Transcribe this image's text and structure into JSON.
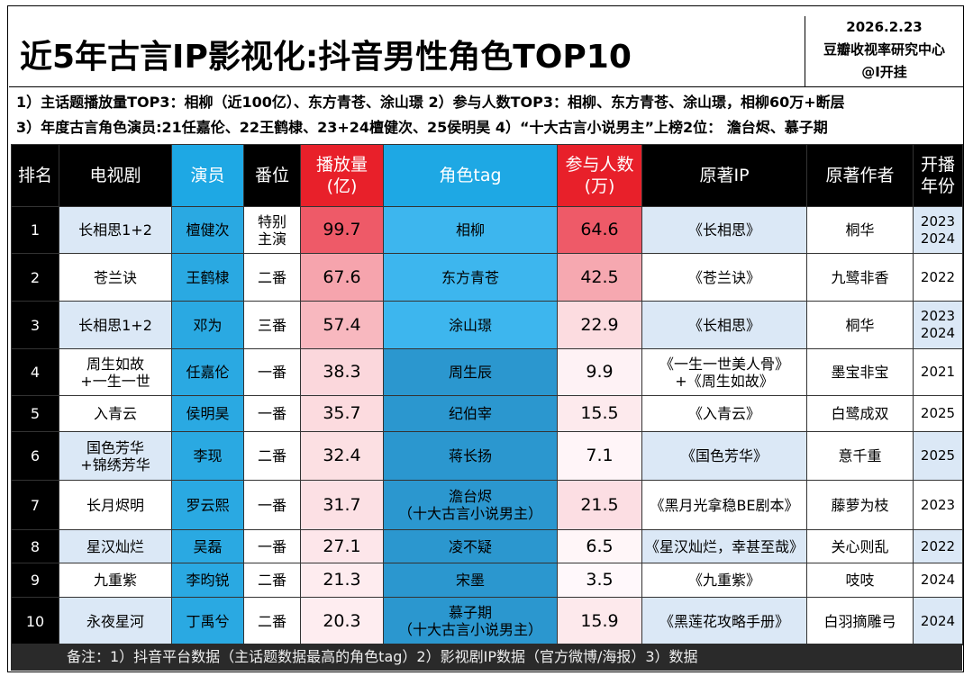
{
  "header": {
    "title": "近5年古言IP影视化:抖音男性角色TOP10",
    "date": "2026.2.23",
    "source": "豆瓣收视率研究中心",
    "author": "@I开挂"
  },
  "notes": [
    "1）主话题播放量TOP3：相柳（近100亿）、东方青苍、涂山璟 2）参与人数TOP3：相柳、东方青苍、涂山璟，相柳60万+断层",
    "3）年度古言角色演员:21任嘉伦、22王鹤棣、23+24檀健次、25侯明昊 4）“十大古言小说男主”上榜2位： 澹台烬、慕子期"
  ],
  "table": {
    "columns": [
      "排名",
      "电视剧",
      "演员",
      "番位",
      "播放量\n(亿)",
      "角色tag",
      "参与人数\n(万)",
      "原著IP",
      "原著作者",
      "开播\n年份"
    ],
    "rows": [
      [
        1,
        "长相思1+2",
        "檀健次",
        "特别\n主演",
        99.7,
        "相柳",
        64.6,
        "《长相思》",
        "桐华",
        "2023\n2024"
      ],
      [
        2,
        "苍兰诀",
        "王鹤棣",
        "二番",
        67.6,
        "东方青苍",
        42.5,
        "《苍兰诀》",
        "九鹭非香",
        2022
      ],
      [
        3,
        "长相思1+2",
        "邓为",
        "三番",
        57.4,
        "涂山璟",
        22.9,
        "《长相思》",
        "桐华",
        "2023\n2024"
      ],
      [
        4,
        "周生如故\n+一生一世",
        "任嘉伦",
        "一番",
        38.3,
        "周生辰",
        9.9,
        "《一生一世美人骨》\n+《周生如故》",
        "墨宝非宝",
        2021
      ],
      [
        5,
        "入青云",
        "侯明昊",
        "一番",
        35.7,
        "纪伯宰",
        15.5,
        "《入青云》",
        "白鹭成双",
        2025
      ],
      [
        6,
        "国色芳华\n+锦绣芳华",
        "李现",
        "二番",
        32.4,
        "蒋长扬",
        7.1,
        "《国色芳华》",
        "意千重",
        2025
      ],
      [
        7,
        "长月烬明",
        "罗云熙",
        "一番",
        31.7,
        "澹台烬\n（十大古言小说男主）",
        21.5,
        "《黑月光拿稳BE剧本》",
        "藤萝为枝",
        2023
      ],
      [
        8,
        "星汉灿烂",
        "吴磊",
        "一番",
        27.1,
        "凌不疑",
        6.5,
        "《星汉灿烂，幸甚至哉》",
        "关心则乱",
        2022
      ],
      [
        9,
        "九重紫",
        "李昀锐",
        "二番",
        21.3,
        "宋墨",
        3.5,
        "《九重紫》",
        "吱吱",
        2024
      ],
      [
        10,
        "永夜星河",
        "丁禹兮",
        "二番",
        20.3,
        "慕子期\n（十大古言小说男主）",
        15.9,
        "《黑莲花攻略手册》",
        "白羽摘雕弓",
        2024
      ]
    ]
  },
  "footer": "备注：1）抖音平台数据（主话题数据最高的角色tag）2）影视剧IP数据（官方微博/海报）3）数据"
}
